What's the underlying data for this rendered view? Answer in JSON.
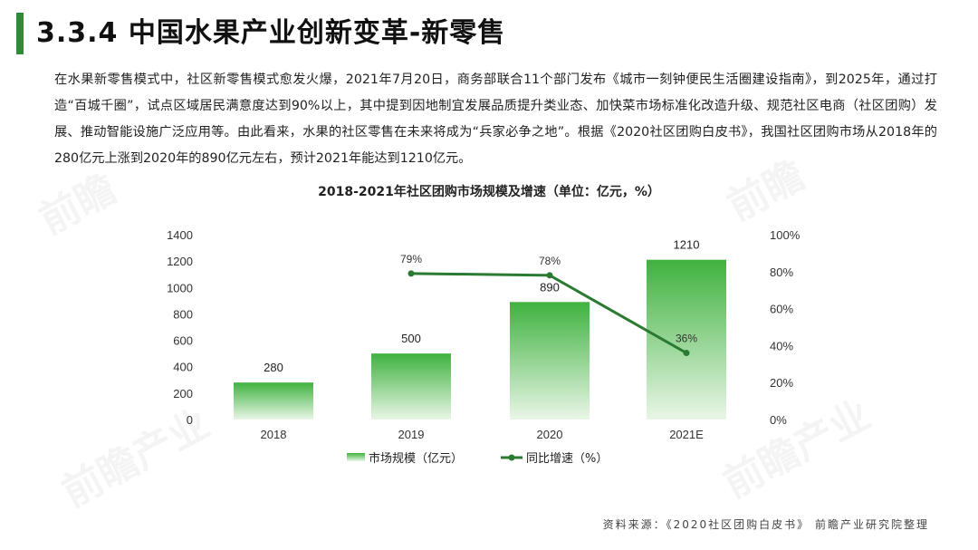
{
  "header": {
    "title": "3.3.4 中国水果产业创新变革-新零售"
  },
  "body": {
    "paragraph": "在水果新零售模式中，社区新零售模式愈发火爆，2021年7月20日，商务部联合11个部门发布《城市一刻钟便民生活圈建设指南》，到2025年，通过打造“百城千圈”，试点区域居民满意度达到90%以上，其中提到因地制宜发展品质提升类业态、加快菜市场标准化改造升级、规范社区电商（社区团购）发展、推动智能设施广泛应用等。由此看来，水果的社区零售在未来将成为“兵家必争之地”。根据《2020社区团购白皮书》，我国社区团购市场从2018年的280亿元上涨到2020年的890亿元左右，预计2021年能达到1210亿元。"
  },
  "footer": {
    "source": "资料来源：《2020社区团购白皮书》 前瞻产业研究院整理"
  },
  "colors": {
    "accent": "#2e8b3a",
    "bar_top": "#3fb23f",
    "bar_bottom": "#e8f5e6",
    "line": "#2a7a32"
  },
  "chart_data": {
    "type": "bar",
    "title": "2018-2021年社区团购市场规模及增速（单位：亿元，%）",
    "categories": [
      "2018",
      "2019",
      "2020",
      "2021E"
    ],
    "series": [
      {
        "name": "市场规模（亿元）",
        "type": "bar",
        "axis": "left",
        "values": [
          280,
          500,
          890,
          1210
        ],
        "labels": [
          "280",
          "500",
          "890",
          "1210"
        ]
      },
      {
        "name": "同比增速（%）",
        "type": "line",
        "axis": "right",
        "values": [
          null,
          79,
          78,
          36
        ],
        "labels": [
          "",
          "79%",
          "78%",
          "36%"
        ]
      }
    ],
    "y_left": {
      "min": 0,
      "max": 1400,
      "ticks": [
        "0",
        "200",
        "400",
        "600",
        "800",
        "1000",
        "1200",
        "1400"
      ]
    },
    "y_right": {
      "min": 0,
      "max": 100,
      "ticks": [
        "0%",
        "20%",
        "40%",
        "60%",
        "80%",
        "100%"
      ]
    },
    "grid": false,
    "legend_position": "bottom"
  }
}
